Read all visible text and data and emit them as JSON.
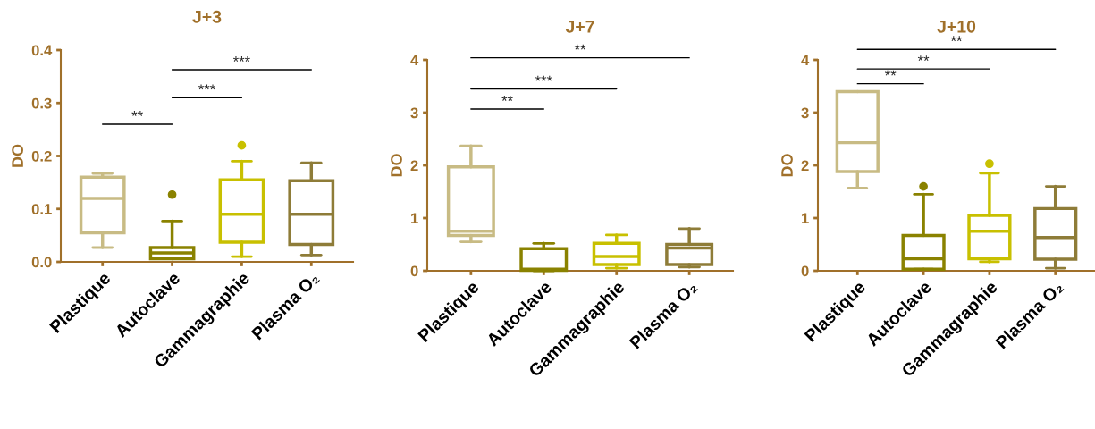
{
  "chart_data": [
    {
      "type": "box",
      "title": "J+3",
      "ylabel": "DO",
      "categories": [
        "Plastique",
        "Autoclave",
        "Gammagraphie",
        "Plasma O₂"
      ],
      "colors": [
        "#c8bb84",
        "#8a8200",
        "#c8c000",
        "#8e7c38"
      ],
      "boxes": [
        {
          "low": 0.027,
          "q1": 0.055,
          "median": 0.12,
          "q3": 0.16,
          "high": 0.167
        },
        {
          "low": 0.006,
          "q1": 0.006,
          "median": 0.017,
          "q3": 0.027,
          "high": 0.077,
          "outliers": [
            0.127
          ]
        },
        {
          "low": 0.01,
          "q1": 0.037,
          "median": 0.09,
          "q3": 0.155,
          "high": 0.19,
          "outliers": [
            0.22
          ]
        },
        {
          "low": 0.013,
          "q1": 0.033,
          "median": 0.09,
          "q3": 0.153,
          "high": 0.187
        }
      ],
      "ylim": [
        0,
        0.4
      ],
      "yticks": [
        {
          "value": 0,
          "label": "0.0"
        },
        0.1,
        0.2,
        0.3,
        0.4
      ],
      "annotations": [
        "**",
        "***",
        "***"
      ]
    },
    {
      "type": "box",
      "title": "J+7",
      "ylabel": "DO",
      "categories": [
        "Plastique",
        "Autoclave",
        "Gammagraphie",
        "Plasma O₂"
      ],
      "colors": [
        "#c8bb84",
        "#8a8200",
        "#c8c000",
        "#8e7c38"
      ],
      "boxes": [
        {
          "low": 0.55,
          "q1": 0.67,
          "median": 0.75,
          "q3": 1.97,
          "high": 2.37
        },
        {
          "low": 0,
          "q1": 0.01,
          "median": 0.03,
          "q3": 0.42,
          "high": 0.52
        },
        {
          "low": 0.05,
          "q1": 0.12,
          "median": 0.27,
          "q3": 0.52,
          "high": 0.68
        },
        {
          "low": 0.07,
          "q1": 0.12,
          "median": 0.43,
          "q3": 0.5,
          "high": 0.8
        }
      ],
      "ylim": [
        0,
        4
      ],
      "yticks": [
        0,
        1,
        2,
        3,
        4
      ],
      "annotations": [
        "**",
        "***",
        "**"
      ]
    },
    {
      "type": "box",
      "title": "J+10",
      "ylabel": "DO",
      "categories": [
        "Plastique",
        "Autoclave",
        "Gammagraphie",
        "Plasma O₂"
      ],
      "colors": [
        "#c8bb84",
        "#8a8200",
        "#c8c000",
        "#8e7c38"
      ],
      "boxes": [
        {
          "low": 1.57,
          "q1": 1.88,
          "median": 2.43,
          "q3": 3.4,
          "high": 3.4
        },
        {
          "low": 0.03,
          "q1": 0.03,
          "median": 0.23,
          "q3": 0.67,
          "high": 1.45,
          "outliers": [
            1.6
          ]
        },
        {
          "low": 0.17,
          "q1": 0.23,
          "median": 0.75,
          "q3": 1.05,
          "high": 1.85,
          "outliers": [
            2.03
          ]
        },
        {
          "low": 0.05,
          "q1": 0.22,
          "median": 0.63,
          "q3": 1.18,
          "high": 1.6
        }
      ],
      "ylim": [
        0,
        4
      ],
      "yticks": [
        0,
        1,
        2,
        3,
        4
      ],
      "annotations": [
        "**",
        "**",
        "**"
      ]
    }
  ]
}
